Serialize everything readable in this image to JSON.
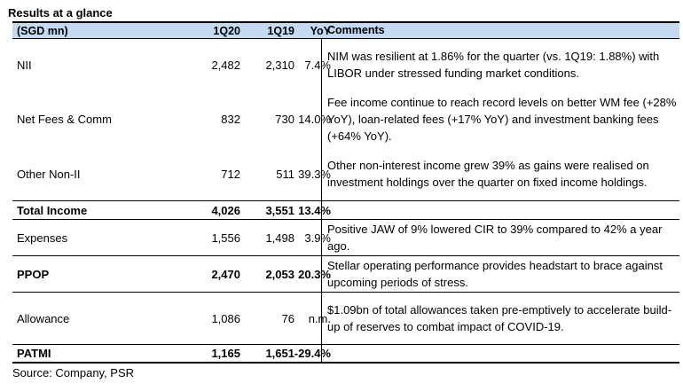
{
  "title": "Results at a glance",
  "headers": {
    "label": "(SGD mn)",
    "q1": "1Q20",
    "q2": "1Q19",
    "yoy": "YoY",
    "comments": "Comments"
  },
  "rows": [
    {
      "label": "NII",
      "q1": "2,482",
      "q2": "2,310",
      "yoy": "7.4%",
      "comment": "NIM was resilient at 1.86% for the quarter (vs. 1Q19: 1.88%) with LIBOR under stressed funding market conditions."
    },
    {
      "label": "Net Fees & Comm",
      "q1": "832",
      "q2": "730",
      "yoy": "14.0%",
      "comment": "Fee income continue to reach record levels on better WM fee (+28% YoY), loan-related fees (+17% YoY) and investment banking fees (+64% YoY)."
    },
    {
      "label": "Other Non-II",
      "q1": "712",
      "q2": "511",
      "yoy": "39.3%",
      "comment": "Other non-interest income grew 39% as gains were realised on investment holdings over the quarter on fixed income holdings."
    },
    {
      "label": "Total Income",
      "q1": "4,026",
      "q2": "3,551",
      "yoy": "13.4%",
      "comment": ""
    },
    {
      "label": "Expenses",
      "q1": "1,556",
      "q2": "1,498",
      "yoy": "3.9%",
      "comment": "Positive JAW of 9% lowered CIR to 39% compared to 42% a year ago."
    },
    {
      "label": "PPOP",
      "q1": "2,470",
      "q2": "2,053",
      "yoy": "20.3%",
      "comment": "Stellar operating performance provides headstart to brace against upcoming periods of stress."
    },
    {
      "label": "Allowance",
      "q1": "1,086",
      "q2": "76",
      "yoy": "n.m.",
      "comment": "$1.09bn of total allowances taken pre-emptively to accelerate build-up of reserves to combat impact of COVID-19."
    },
    {
      "label": "PATMI",
      "q1": "1,165",
      "q2": "1,651",
      "yoy": "-29.4%",
      "comment": ""
    }
  ],
  "source": "Source: Company, PSR"
}
